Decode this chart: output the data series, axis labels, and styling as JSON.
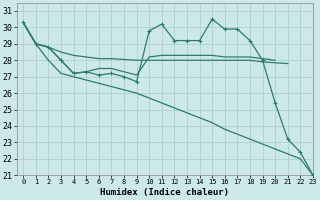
{
  "xlabel": "Humidex (Indice chaleur)",
  "ylabel": "",
  "bg_color": "#cce8e8",
  "grid_color": "#aacccc",
  "line_color": "#2e7b6e",
  "xlim": [
    -0.5,
    23
  ],
  "ylim": [
    21,
    31.5
  ],
  "xticks": [
    0,
    1,
    2,
    3,
    4,
    5,
    6,
    7,
    8,
    9,
    10,
    11,
    12,
    13,
    14,
    15,
    16,
    17,
    18,
    19,
    20,
    21,
    22,
    23
  ],
  "yticks": [
    21,
    22,
    23,
    24,
    25,
    26,
    27,
    28,
    29,
    30,
    31
  ],
  "series": [
    {
      "x": [
        0,
        1,
        2,
        3,
        4,
        5,
        6,
        7,
        8,
        9,
        10,
        11,
        12,
        13,
        14,
        15,
        16,
        17,
        18,
        19,
        20,
        21,
        22,
        23
      ],
      "y": [
        30.3,
        29.0,
        28.0,
        27.2,
        27.0,
        26.8,
        26.6,
        26.4,
        26.2,
        26.0,
        25.7,
        25.4,
        25.1,
        24.8,
        24.5,
        24.2,
        23.8,
        23.5,
        23.2,
        22.9,
        22.6,
        22.3,
        22.0,
        21.0
      ],
      "marker": false,
      "lw": 0.9
    },
    {
      "x": [
        0,
        1,
        2,
        3,
        4,
        5,
        6,
        7,
        8,
        9,
        10,
        11,
        12,
        13,
        14,
        15,
        16,
        17,
        18,
        19,
        20,
        21
      ],
      "y": [
        30.3,
        29.0,
        28.8,
        28.5,
        28.3,
        28.2,
        28.1,
        28.1,
        28.05,
        28.0,
        28.0,
        28.0,
        28.0,
        28.0,
        28.0,
        28.0,
        28.0,
        28.0,
        28.0,
        27.9,
        27.85,
        27.8
      ],
      "marker": false,
      "lw": 0.9
    },
    {
      "x": [
        0,
        1,
        2,
        3,
        4,
        5,
        6,
        7,
        8,
        9,
        10,
        11,
        12,
        13,
        14,
        15,
        16,
        17,
        18,
        19,
        20,
        21,
        22,
        23
      ],
      "y": [
        30.3,
        29.0,
        28.8,
        28.0,
        27.2,
        27.3,
        27.1,
        27.2,
        27.0,
        26.7,
        29.8,
        30.2,
        29.2,
        29.2,
        29.2,
        30.5,
        29.9,
        29.9,
        29.2,
        28.0,
        25.4,
        23.2,
        22.4,
        21.0
      ],
      "marker": true,
      "lw": 0.9
    },
    {
      "x": [
        0,
        1,
        2,
        3,
        4,
        5,
        6,
        7,
        8,
        9,
        10,
        11,
        12,
        13,
        14,
        15,
        16,
        17,
        18,
        19,
        20
      ],
      "y": [
        30.3,
        29.0,
        28.8,
        28.0,
        27.2,
        27.3,
        27.5,
        27.5,
        27.3,
        27.1,
        28.2,
        28.3,
        28.3,
        28.3,
        28.3,
        28.3,
        28.2,
        28.2,
        28.2,
        28.1,
        28.0
      ],
      "marker": false,
      "lw": 0.9
    }
  ]
}
